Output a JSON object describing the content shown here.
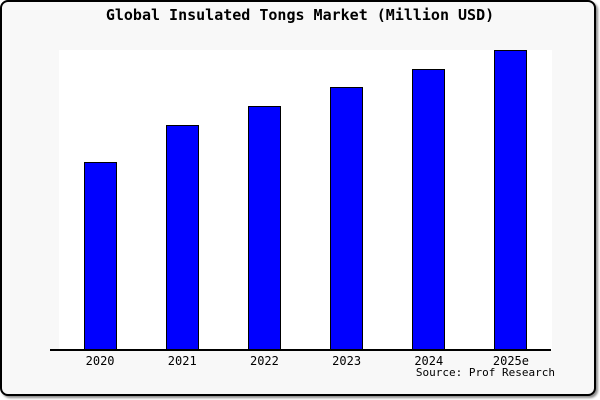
{
  "title": "Global Insulated Tongs Market (Million USD)",
  "source": "Source: Prof Research",
  "colors": {
    "bar_fill": "#0000ff",
    "bar_border": "#000000",
    "page_background": "#f8f8f8",
    "plot_background": "#ffffff",
    "axis": "#000000",
    "text": "#000000",
    "frame_border": "#000000"
  },
  "chart_data": {
    "type": "bar",
    "title": "Global Insulated Tongs Market (Million USD)",
    "categories": [
      "2020",
      "2021",
      "2022",
      "2023",
      "2024",
      "2025e"
    ],
    "values": [
      188,
      225,
      244,
      263,
      281,
      300
    ],
    "value_note": "no y-axis or value labels shown in image; values are relative bar heights measured in pixels against a 300px plot height",
    "xlabel": "",
    "ylabel": "",
    "ylim": [
      0,
      300
    ],
    "grid": false,
    "legend_position": "none",
    "annotations": [
      "Source: Prof Research"
    ]
  }
}
